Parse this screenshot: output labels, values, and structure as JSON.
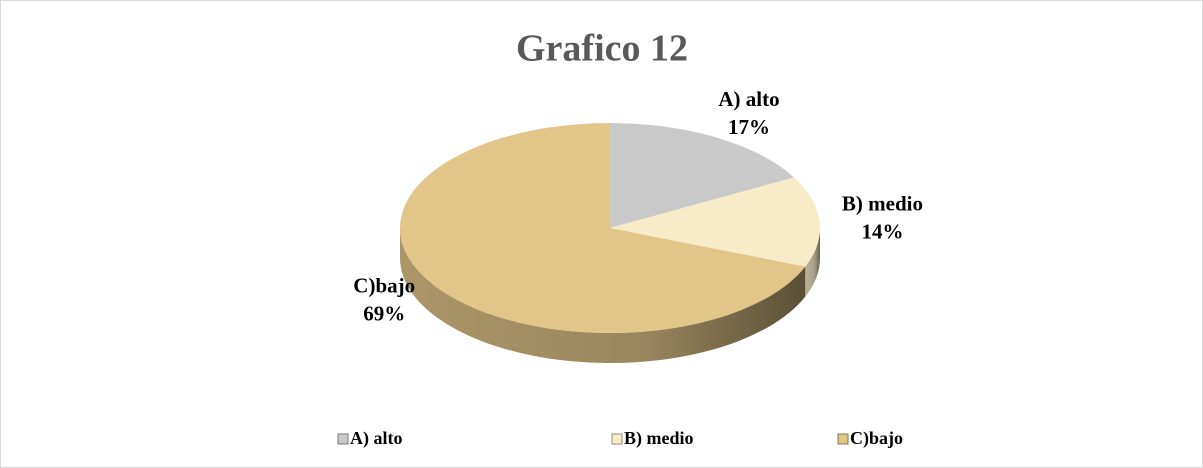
{
  "chart_data": {
    "type": "pie",
    "title": "Grafico 12",
    "categories": [
      "A) alto",
      "B) medio",
      "C)bajo"
    ],
    "values": [
      17,
      14,
      69
    ],
    "value_labels": [
      "17%",
      "14%",
      "69%"
    ],
    "colors": [
      "#c9c9c9",
      "#f8ebc8",
      "#e2c589"
    ],
    "legend": "bottom"
  }
}
